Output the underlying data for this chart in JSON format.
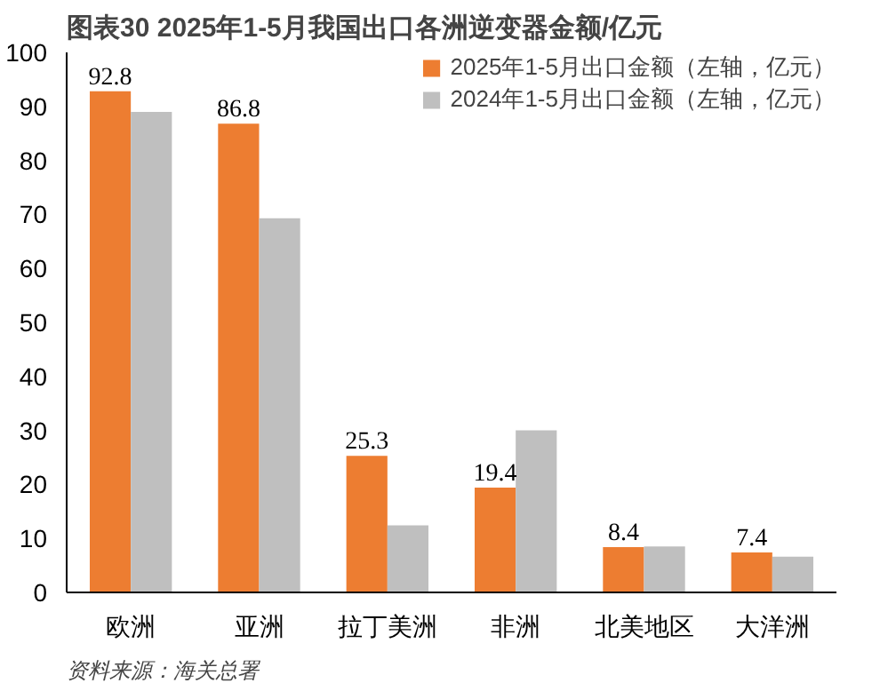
{
  "chart_data": {
    "type": "bar",
    "title": "图表30    2025年1-5月我国出口各洲逆变器金额/亿元",
    "categories": [
      "欧洲",
      "亚洲",
      "拉丁美洲",
      "非洲",
      "北美地区",
      "大洋洲"
    ],
    "series": [
      {
        "name": "2025年1-5月出口金额（左轴，亿元）",
        "color": "#ed7d31",
        "values": [
          92.8,
          86.8,
          25.3,
          19.4,
          8.4,
          7.4
        ],
        "value_labels": [
          "92.8",
          "86.8",
          "25.3",
          "19.4",
          "8.4",
          "7.4"
        ]
      },
      {
        "name": "2024年1-5月出口金额（左轴，亿元）",
        "color": "#bfbfbf",
        "values": [
          89.0,
          69.3,
          12.4,
          30.0,
          8.5,
          6.6
        ]
      }
    ],
    "ylim": [
      0,
      100
    ],
    "yticks": [
      0,
      10,
      20,
      30,
      40,
      50,
      60,
      70,
      80,
      90,
      100
    ],
    "grid": false,
    "legend": "top right",
    "annotations": [
      "资料来源：海关总署"
    ]
  }
}
